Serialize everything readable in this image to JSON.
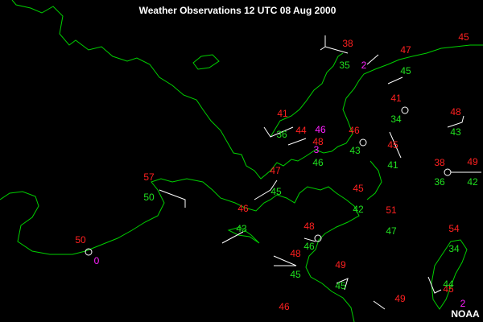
{
  "title": "Weather Observations 12 UTC 08 Aug 2000",
  "credit": "NOAA",
  "observations": {
    "temperature": [
      38,
      45,
      47,
      41,
      41,
      48,
      44,
      46,
      45,
      48,
      38,
      49,
      47,
      57,
      45,
      46,
      51,
      48,
      54,
      50,
      48,
      49,
      45,
      49,
      46
    ],
    "dewpoint": [
      35,
      45,
      34,
      43,
      36,
      43,
      46,
      41,
      36,
      42,
      50,
      45,
      42,
      47,
      43,
      46,
      45,
      45,
      34,
      44
    ],
    "other": [
      2,
      46,
      3,
      0,
      2
    ]
  }
}
